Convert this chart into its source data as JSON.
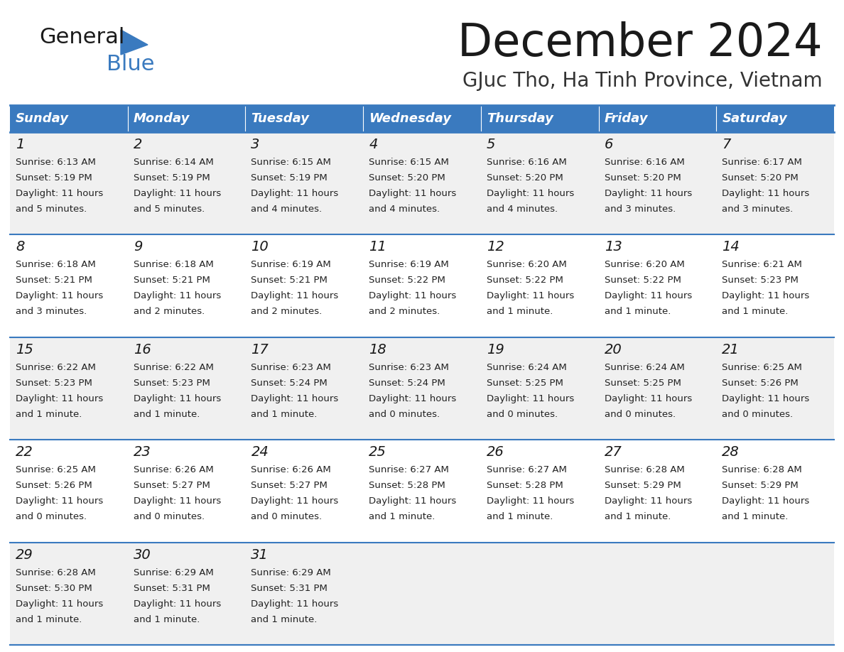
{
  "title": "December 2024",
  "subtitle": "GJuc Tho, Ha Tinh Province, Vietnam",
  "header_color": "#3a7abf",
  "header_text_color": "#ffffff",
  "days_of_week": [
    "Sunday",
    "Monday",
    "Tuesday",
    "Wednesday",
    "Thursday",
    "Friday",
    "Saturday"
  ],
  "background_color": "#ffffff",
  "cell_bg_even": "#f0f0f0",
  "cell_bg_odd": "#ffffff",
  "row_line_color": "#3a7abf",
  "calendar": [
    [
      {
        "day": "1",
        "sunrise": "6:13 AM",
        "sunset": "5:19 PM",
        "daylight_line1": "Daylight: 11 hours",
        "daylight_line2": "and 5 minutes."
      },
      {
        "day": "2",
        "sunrise": "6:14 AM",
        "sunset": "5:19 PM",
        "daylight_line1": "Daylight: 11 hours",
        "daylight_line2": "and 5 minutes."
      },
      {
        "day": "3",
        "sunrise": "6:15 AM",
        "sunset": "5:19 PM",
        "daylight_line1": "Daylight: 11 hours",
        "daylight_line2": "and 4 minutes."
      },
      {
        "day": "4",
        "sunrise": "6:15 AM",
        "sunset": "5:20 PM",
        "daylight_line1": "Daylight: 11 hours",
        "daylight_line2": "and 4 minutes."
      },
      {
        "day": "5",
        "sunrise": "6:16 AM",
        "sunset": "5:20 PM",
        "daylight_line1": "Daylight: 11 hours",
        "daylight_line2": "and 4 minutes."
      },
      {
        "day": "6",
        "sunrise": "6:16 AM",
        "sunset": "5:20 PM",
        "daylight_line1": "Daylight: 11 hours",
        "daylight_line2": "and 3 minutes."
      },
      {
        "day": "7",
        "sunrise": "6:17 AM",
        "sunset": "5:20 PM",
        "daylight_line1": "Daylight: 11 hours",
        "daylight_line2": "and 3 minutes."
      }
    ],
    [
      {
        "day": "8",
        "sunrise": "6:18 AM",
        "sunset": "5:21 PM",
        "daylight_line1": "Daylight: 11 hours",
        "daylight_line2": "and 3 minutes."
      },
      {
        "day": "9",
        "sunrise": "6:18 AM",
        "sunset": "5:21 PM",
        "daylight_line1": "Daylight: 11 hours",
        "daylight_line2": "and 2 minutes."
      },
      {
        "day": "10",
        "sunrise": "6:19 AM",
        "sunset": "5:21 PM",
        "daylight_line1": "Daylight: 11 hours",
        "daylight_line2": "and 2 minutes."
      },
      {
        "day": "11",
        "sunrise": "6:19 AM",
        "sunset": "5:22 PM",
        "daylight_line1": "Daylight: 11 hours",
        "daylight_line2": "and 2 minutes."
      },
      {
        "day": "12",
        "sunrise": "6:20 AM",
        "sunset": "5:22 PM",
        "daylight_line1": "Daylight: 11 hours",
        "daylight_line2": "and 1 minute."
      },
      {
        "day": "13",
        "sunrise": "6:20 AM",
        "sunset": "5:22 PM",
        "daylight_line1": "Daylight: 11 hours",
        "daylight_line2": "and 1 minute."
      },
      {
        "day": "14",
        "sunrise": "6:21 AM",
        "sunset": "5:23 PM",
        "daylight_line1": "Daylight: 11 hours",
        "daylight_line2": "and 1 minute."
      }
    ],
    [
      {
        "day": "15",
        "sunrise": "6:22 AM",
        "sunset": "5:23 PM",
        "daylight_line1": "Daylight: 11 hours",
        "daylight_line2": "and 1 minute."
      },
      {
        "day": "16",
        "sunrise": "6:22 AM",
        "sunset": "5:23 PM",
        "daylight_line1": "Daylight: 11 hours",
        "daylight_line2": "and 1 minute."
      },
      {
        "day": "17",
        "sunrise": "6:23 AM",
        "sunset": "5:24 PM",
        "daylight_line1": "Daylight: 11 hours",
        "daylight_line2": "and 1 minute."
      },
      {
        "day": "18",
        "sunrise": "6:23 AM",
        "sunset": "5:24 PM",
        "daylight_line1": "Daylight: 11 hours",
        "daylight_line2": "and 0 minutes."
      },
      {
        "day": "19",
        "sunrise": "6:24 AM",
        "sunset": "5:25 PM",
        "daylight_line1": "Daylight: 11 hours",
        "daylight_line2": "and 0 minutes."
      },
      {
        "day": "20",
        "sunrise": "6:24 AM",
        "sunset": "5:25 PM",
        "daylight_line1": "Daylight: 11 hours",
        "daylight_line2": "and 0 minutes."
      },
      {
        "day": "21",
        "sunrise": "6:25 AM",
        "sunset": "5:26 PM",
        "daylight_line1": "Daylight: 11 hours",
        "daylight_line2": "and 0 minutes."
      }
    ],
    [
      {
        "day": "22",
        "sunrise": "6:25 AM",
        "sunset": "5:26 PM",
        "daylight_line1": "Daylight: 11 hours",
        "daylight_line2": "and 0 minutes."
      },
      {
        "day": "23",
        "sunrise": "6:26 AM",
        "sunset": "5:27 PM",
        "daylight_line1": "Daylight: 11 hours",
        "daylight_line2": "and 0 minutes."
      },
      {
        "day": "24",
        "sunrise": "6:26 AM",
        "sunset": "5:27 PM",
        "daylight_line1": "Daylight: 11 hours",
        "daylight_line2": "and 0 minutes."
      },
      {
        "day": "25",
        "sunrise": "6:27 AM",
        "sunset": "5:28 PM",
        "daylight_line1": "Daylight: 11 hours",
        "daylight_line2": "and 1 minute."
      },
      {
        "day": "26",
        "sunrise": "6:27 AM",
        "sunset": "5:28 PM",
        "daylight_line1": "Daylight: 11 hours",
        "daylight_line2": "and 1 minute."
      },
      {
        "day": "27",
        "sunrise": "6:28 AM",
        "sunset": "5:29 PM",
        "daylight_line1": "Daylight: 11 hours",
        "daylight_line2": "and 1 minute."
      },
      {
        "day": "28",
        "sunrise": "6:28 AM",
        "sunset": "5:29 PM",
        "daylight_line1": "Daylight: 11 hours",
        "daylight_line2": "and 1 minute."
      }
    ],
    [
      {
        "day": "29",
        "sunrise": "6:28 AM",
        "sunset": "5:30 PM",
        "daylight_line1": "Daylight: 11 hours",
        "daylight_line2": "and 1 minute."
      },
      {
        "day": "30",
        "sunrise": "6:29 AM",
        "sunset": "5:31 PM",
        "daylight_line1": "Daylight: 11 hours",
        "daylight_line2": "and 1 minute."
      },
      {
        "day": "31",
        "sunrise": "6:29 AM",
        "sunset": "5:31 PM",
        "daylight_line1": "Daylight: 11 hours",
        "daylight_line2": "and 1 minute."
      },
      null,
      null,
      null,
      null
    ]
  ]
}
